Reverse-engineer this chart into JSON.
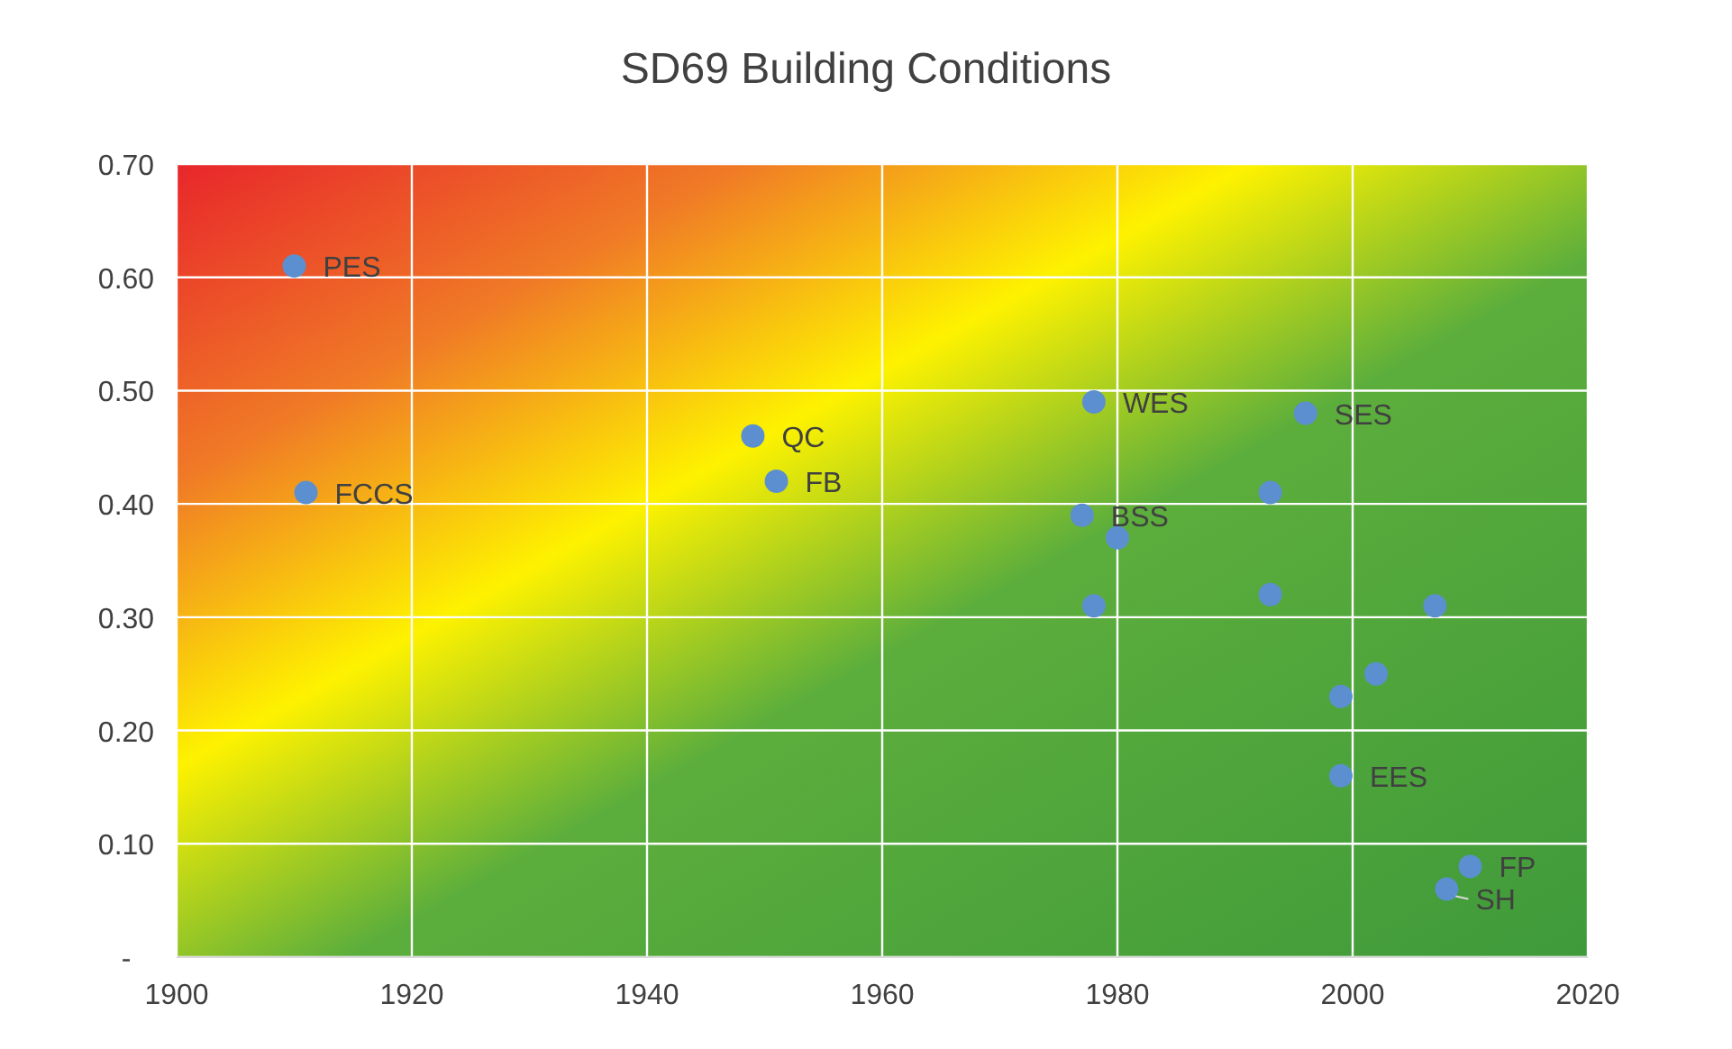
{
  "chart_data": {
    "type": "scatter",
    "title": "SD69 Building Conditions",
    "x": [
      1910,
      1911,
      1949,
      1951,
      1978,
      1977,
      1978,
      1980,
      1993,
      1993,
      1996,
      1999,
      2002,
      1999,
      2007,
      2010,
      2008
    ],
    "series": [
      {
        "color": "#5b8fd0",
        "values": [
          0.61,
          0.41,
          0.46,
          0.42,
          0.49,
          0.39,
          0.31,
          0.37,
          0.41,
          0.32,
          0.48,
          0.23,
          0.25,
          0.16,
          0.31,
          0.08,
          0.06
        ]
      }
    ],
    "xlim": [
      1900,
      2020
    ],
    "xticks": [
      1900,
      1920,
      1940,
      1960,
      1980,
      2000,
      2020
    ],
    "ylim": [
      0,
      0.7
    ],
    "yticks": [
      {
        "value": 0,
        "label": "-"
      },
      {
        "value": 0.1,
        "label": "0.10"
      },
      {
        "value": 0.2,
        "label": "0.20"
      },
      {
        "value": 0.3,
        "label": "0.30"
      },
      {
        "value": 0.4,
        "label": "0.40"
      },
      {
        "value": 0.5,
        "label": "0.50"
      },
      {
        "value": 0.6,
        "label": "0.60"
      },
      {
        "value": 0.7,
        "label": "0.70"
      }
    ],
    "grid": true,
    "marker": "circle",
    "annotations": [
      {
        "text": "PES",
        "x": 1910,
        "y": 0.61
      },
      {
        "text": "FCCS",
        "x": 1911,
        "y": 0.41
      },
      {
        "text": "QC",
        "x": 1949,
        "y": 0.46
      },
      {
        "text": "FB",
        "x": 1951,
        "y": 0.42
      },
      {
        "text": "WES",
        "x": 1978,
        "y": 0.49
      },
      {
        "text": "BSS",
        "x": 1977,
        "y": 0.39
      },
      {
        "text": "SES",
        "x": 1996,
        "y": 0.48
      },
      {
        "text": "EES",
        "x": 1999,
        "y": 0.16
      },
      {
        "text": "FP",
        "x": 2010,
        "y": 0.08
      },
      {
        "text": "SH",
        "x": 2008,
        "y": 0.06
      }
    ]
  }
}
